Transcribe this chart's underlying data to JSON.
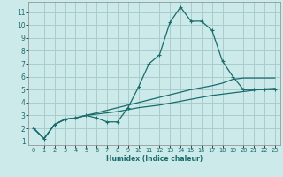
{
  "title": "",
  "xlabel": "Humidex (Indice chaleur)",
  "ylabel": "",
  "bg_color": "#cceaea",
  "grid_color": "#aacccc",
  "line_color": "#1a6b6b",
  "x_all": [
    0,
    1,
    2,
    3,
    4,
    5,
    6,
    7,
    8,
    9,
    10,
    11,
    12,
    13,
    14,
    15,
    16,
    17,
    18,
    19,
    20,
    21,
    22,
    23
  ],
  "line1": [
    2.0,
    1.2,
    2.3,
    2.7,
    2.8,
    3.0,
    2.8,
    2.5,
    2.5,
    3.6,
    5.2,
    7.0,
    7.7,
    10.2,
    11.4,
    10.3,
    10.3,
    9.6,
    7.2,
    6.0,
    5.0,
    5.0,
    5.0,
    5.0
  ],
  "line2": [
    2.0,
    1.2,
    2.3,
    2.7,
    2.8,
    3.0,
    3.2,
    3.4,
    3.6,
    3.8,
    4.0,
    4.2,
    4.4,
    4.6,
    4.8,
    5.0,
    5.15,
    5.3,
    5.5,
    5.8,
    5.9,
    5.9,
    5.9,
    5.9
  ],
  "line3": [
    2.0,
    1.2,
    2.3,
    2.7,
    2.8,
    3.0,
    3.1,
    3.2,
    3.3,
    3.45,
    3.6,
    3.7,
    3.8,
    3.95,
    4.1,
    4.25,
    4.4,
    4.55,
    4.65,
    4.75,
    4.85,
    4.95,
    5.05,
    5.1
  ],
  "ylim": [
    0.7,
    11.8
  ],
  "xlim": [
    -0.5,
    23.5
  ],
  "yticks": [
    1,
    2,
    3,
    4,
    5,
    6,
    7,
    8,
    9,
    10,
    11
  ],
  "xticks": [
    0,
    1,
    2,
    3,
    4,
    5,
    6,
    7,
    8,
    9,
    10,
    11,
    12,
    13,
    14,
    15,
    16,
    17,
    18,
    19,
    20,
    21,
    22,
    23
  ]
}
